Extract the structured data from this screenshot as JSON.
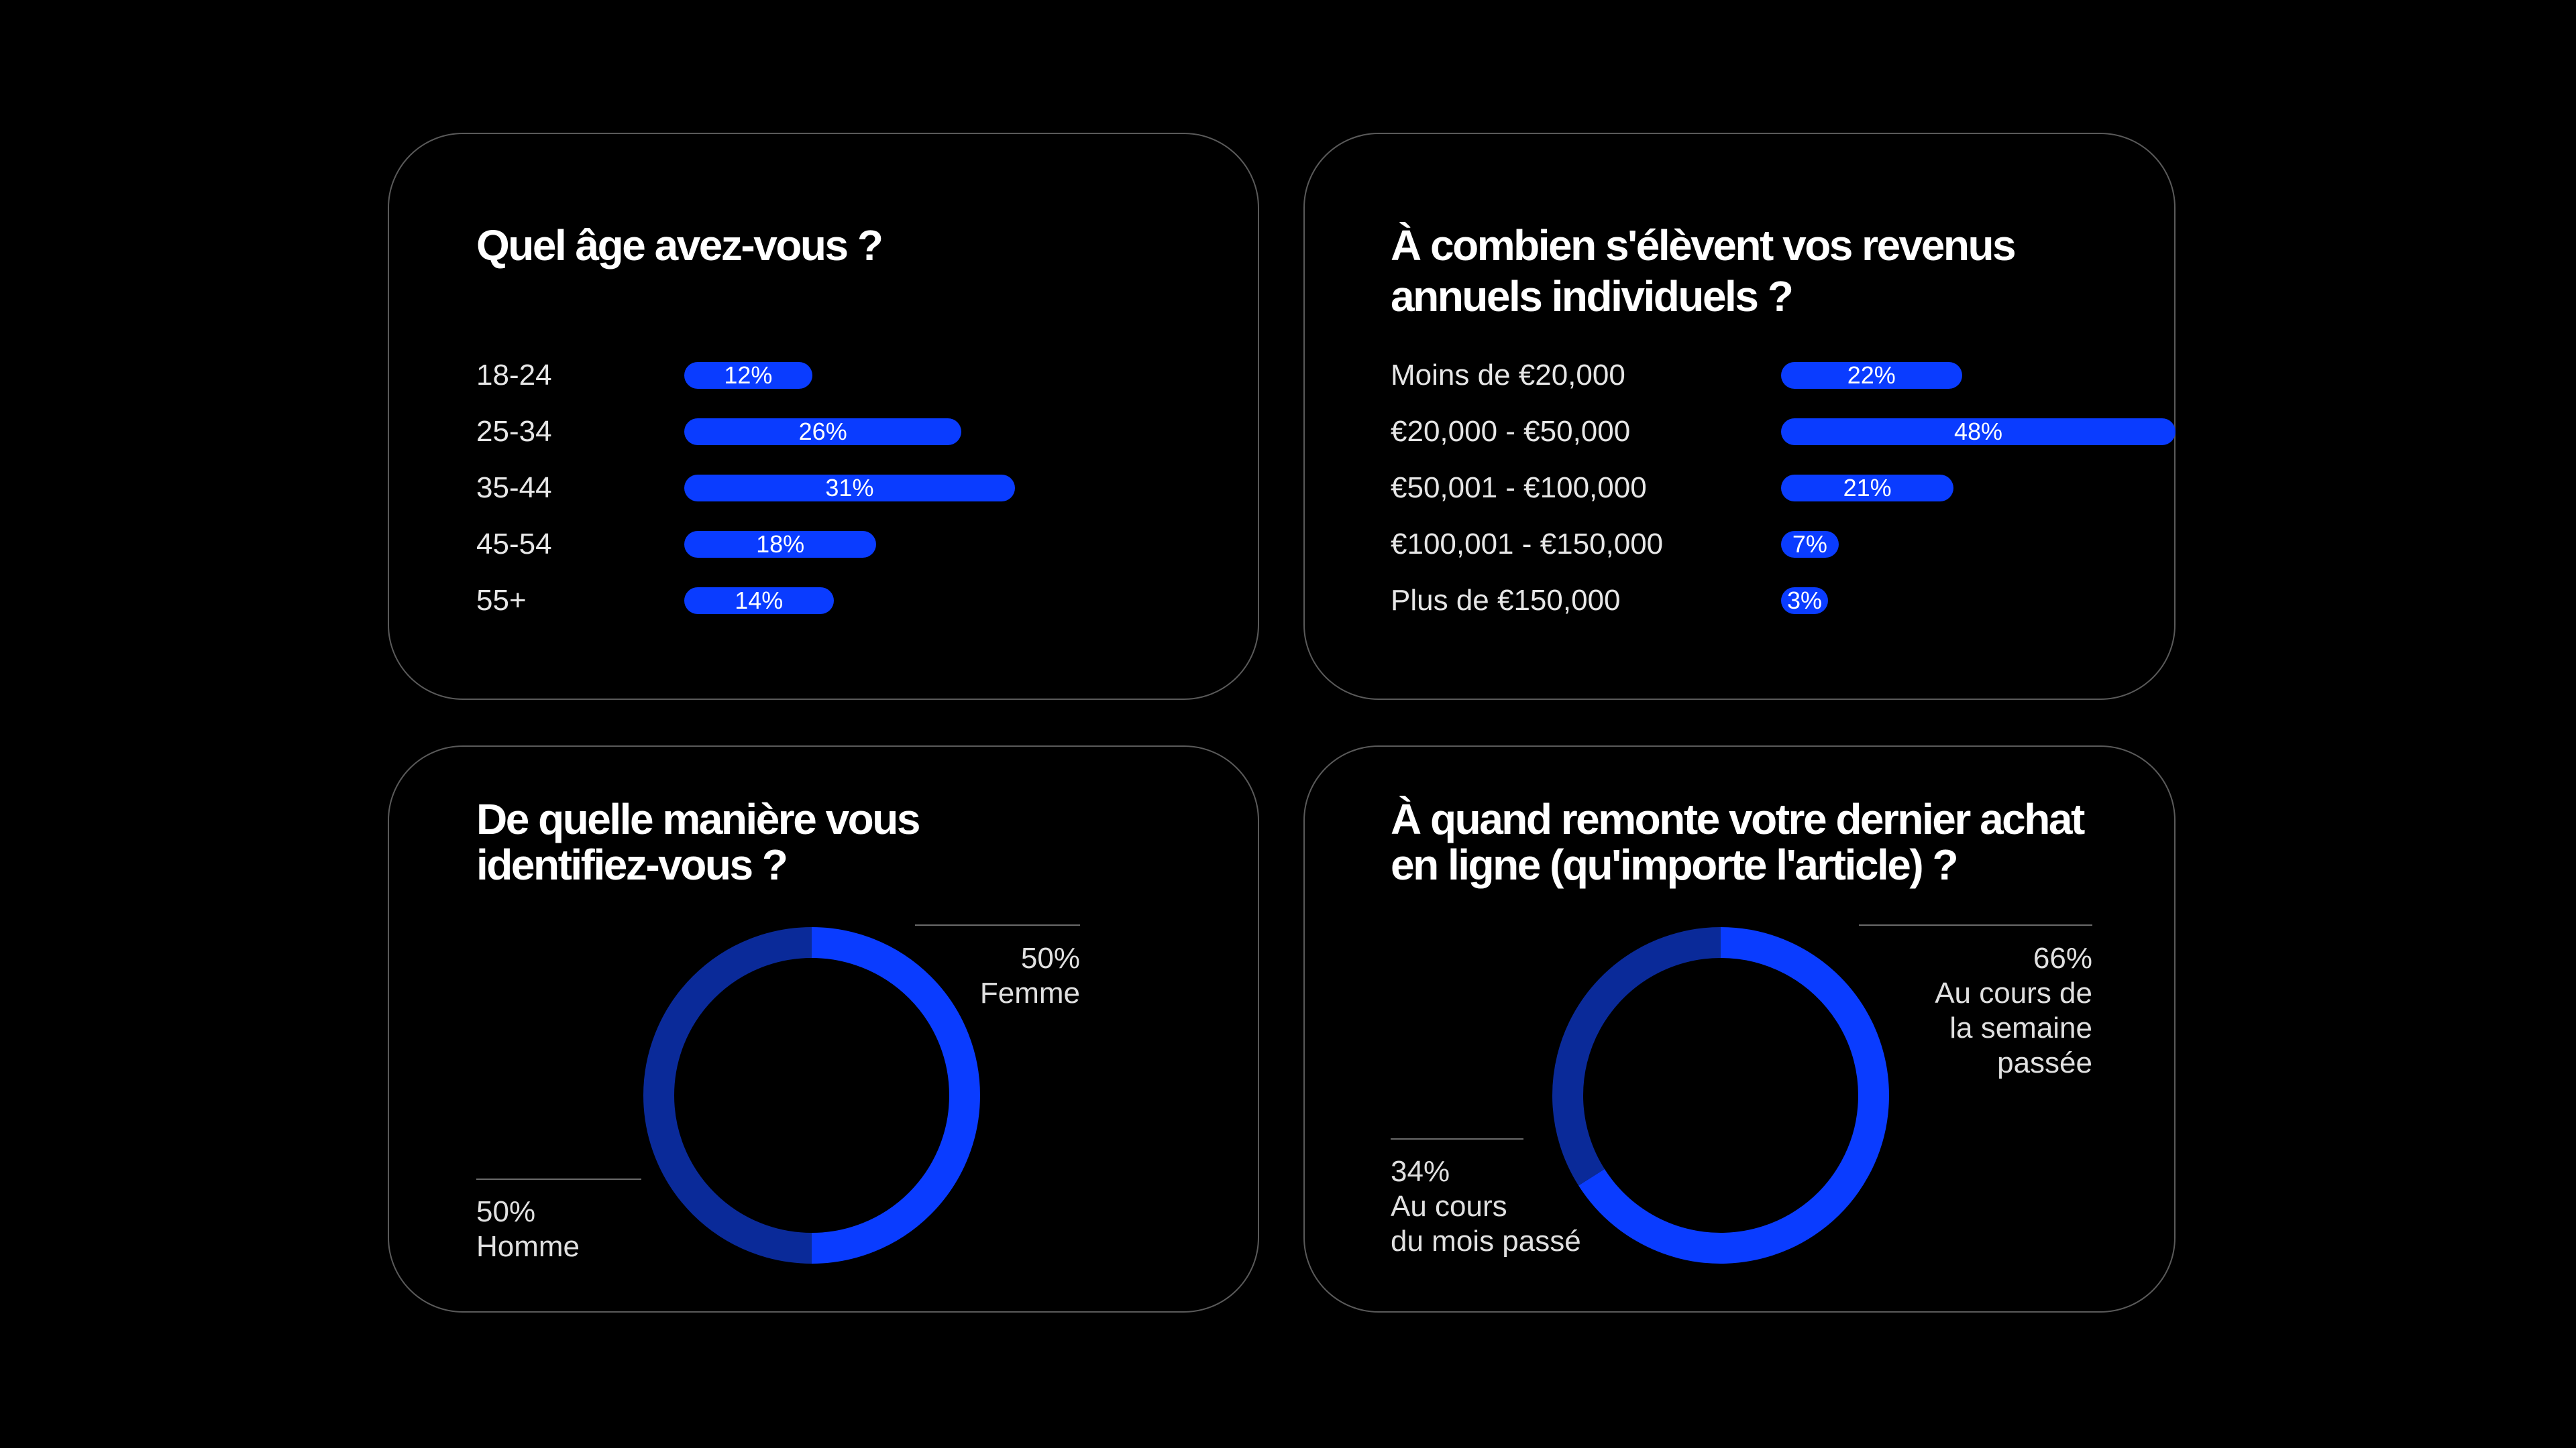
{
  "colors": {
    "background": "#000000",
    "bar": "#0a3cff",
    "donut_primary": "#0a3cff",
    "donut_secondary": "#0a2a99",
    "card_border": "#5a5a5a"
  },
  "chart_data": [
    {
      "type": "bar",
      "title": "Quel âge avez-vous ?",
      "categories": [
        "18-24",
        "25-34",
        "35-44",
        "45-54",
        "55+"
      ],
      "values": [
        12,
        26,
        31,
        18,
        14
      ],
      "value_labels": [
        "12%",
        "26%",
        "31%",
        "18%",
        "14%"
      ],
      "unit": "%",
      "orientation": "horizontal",
      "grid": false
    },
    {
      "type": "bar",
      "title": "À combien s'élèvent vos revenus annuels individuels ?",
      "categories": [
        "Moins de €20,000",
        "€20,000 - €50,000",
        "€50,001 - €100,000",
        "€100,001 - €150,000",
        "Plus de €150,000"
      ],
      "values": [
        22,
        48,
        21,
        7,
        3
      ],
      "value_labels": [
        "22%",
        "48%",
        "21%",
        "7%",
        "3%"
      ],
      "unit": "%",
      "orientation": "horizontal",
      "grid": false
    },
    {
      "type": "pie",
      "donut": true,
      "title": "De quelle manière vous identifiez-vous ?",
      "slices": [
        {
          "label": "Femme",
          "value": 50,
          "value_label": "50%",
          "color": "#0a3cff"
        },
        {
          "label": "Homme",
          "value": 50,
          "value_label": "50%",
          "color": "#0a2a99"
        }
      ]
    },
    {
      "type": "pie",
      "donut": true,
      "title": "À quand remonte votre dernier achat en ligne (qu'importe l'article) ?",
      "slices": [
        {
          "label": "Au cours de la semaine passée",
          "value": 66,
          "value_label": "66%",
          "color": "#0a3cff"
        },
        {
          "label": "Au cours du mois passé",
          "value": 34,
          "value_label": "34%",
          "color": "#0a2a99"
        }
      ]
    }
  ],
  "cards": {
    "age": {
      "title": "Quel âge avez-vous ?"
    },
    "income": {
      "title_line1": "À combien s'élèvent vos revenus",
      "title_line2": "annuels individuels ?"
    },
    "gender": {
      "title_line1": "De quelle manière vous",
      "title_line2": "identifiez-vous ?",
      "female_value": "50%",
      "female_label": "Femme",
      "male_value": "50%",
      "male_label": "Homme"
    },
    "purchase": {
      "title_line1": "À quand remonte votre dernier achat",
      "title_line2": "en ligne (qu'importe l'article) ?",
      "week_value": "66%",
      "week_line1": "Au cours de",
      "week_line2": "la semaine",
      "week_line3": "passée",
      "month_value": "34%",
      "month_line1": "Au cours",
      "month_line2": "du mois passé"
    }
  }
}
